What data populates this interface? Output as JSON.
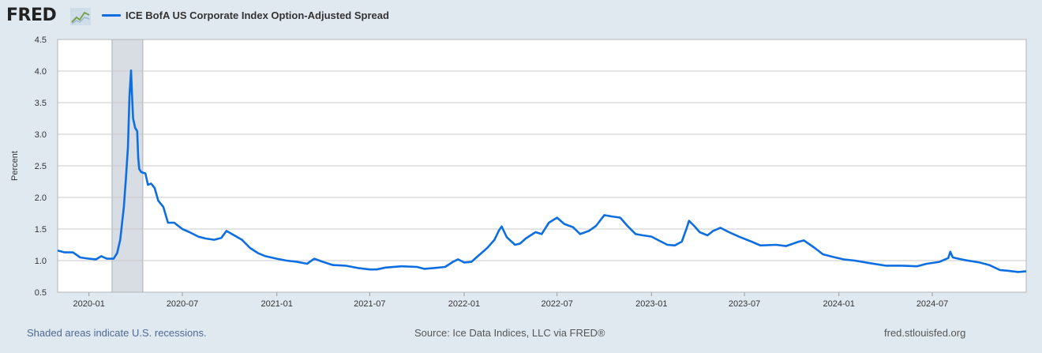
{
  "header": {
    "logo": "FRED",
    "series_label": "ICE BofA US Corporate Index Option-Adjusted Spread"
  },
  "footer": {
    "recession_note": "Shaded areas indicate U.S. recessions.",
    "source": "Source: Ice Data Indices, LLC via FRED®",
    "site": "fred.stlouisfed.org"
  },
  "colors": {
    "line": "#0c6ee0",
    "recession": "#d8dde3",
    "grid": "#c8c8c8"
  },
  "chart_data": {
    "type": "line",
    "ylabel": "Percent",
    "ylim": [
      0.5,
      4.5
    ],
    "yticks": [
      "0.5",
      "1.0",
      "1.5",
      "2.0",
      "2.5",
      "3.0",
      "3.5",
      "4.0",
      "4.5"
    ],
    "xlim": [
      "2019-11-01",
      "2024-12-31"
    ],
    "xticks": [
      "2020-01",
      "2020-07",
      "2021-01",
      "2021-07",
      "2022-01",
      "2022-07",
      "2023-01",
      "2023-07",
      "2024-01",
      "2024-07"
    ],
    "recessions": [
      [
        "2020-02-15",
        "2020-04-15"
      ]
    ],
    "series": [
      {
        "name": "ICE BofA US Corporate Index Option-Adjusted Spread",
        "points": [
          [
            "2019-11-01",
            1.16
          ],
          [
            "2019-11-15",
            1.13
          ],
          [
            "2019-12-01",
            1.13
          ],
          [
            "2019-12-15",
            1.05
          ],
          [
            "2020-01-01",
            1.03
          ],
          [
            "2020-01-15",
            1.02
          ],
          [
            "2020-01-25",
            1.07
          ],
          [
            "2020-02-05",
            1.03
          ],
          [
            "2020-02-18",
            1.03
          ],
          [
            "2020-02-25",
            1.12
          ],
          [
            "2020-03-02",
            1.33
          ],
          [
            "2020-03-09",
            1.85
          ],
          [
            "2020-03-13",
            2.3
          ],
          [
            "2020-03-17",
            2.8
          ],
          [
            "2020-03-20",
            3.6
          ],
          [
            "2020-03-23",
            4.01
          ],
          [
            "2020-03-25",
            3.6
          ],
          [
            "2020-03-27",
            3.25
          ],
          [
            "2020-03-31",
            3.1
          ],
          [
            "2020-04-04",
            3.05
          ],
          [
            "2020-04-06",
            2.62
          ],
          [
            "2020-04-08",
            2.45
          ],
          [
            "2020-04-12",
            2.4
          ],
          [
            "2020-04-20",
            2.38
          ],
          [
            "2020-04-25",
            2.2
          ],
          [
            "2020-05-01",
            2.22
          ],
          [
            "2020-05-08",
            2.15
          ],
          [
            "2020-05-15",
            1.95
          ],
          [
            "2020-05-25",
            1.85
          ],
          [
            "2020-06-03",
            1.6
          ],
          [
            "2020-06-15",
            1.6
          ],
          [
            "2020-07-01",
            1.5
          ],
          [
            "2020-07-15",
            1.45
          ],
          [
            "2020-08-01",
            1.38
          ],
          [
            "2020-08-15",
            1.35
          ],
          [
            "2020-09-01",
            1.33
          ],
          [
            "2020-09-15",
            1.36
          ],
          [
            "2020-09-25",
            1.47
          ],
          [
            "2020-10-10",
            1.4
          ],
          [
            "2020-10-25",
            1.33
          ],
          [
            "2020-11-10",
            1.2
          ],
          [
            "2020-11-25",
            1.12
          ],
          [
            "2020-12-10",
            1.07
          ],
          [
            "2021-01-01",
            1.03
          ],
          [
            "2021-01-20",
            1.0
          ],
          [
            "2021-02-10",
            0.98
          ],
          [
            "2021-03-01",
            0.95
          ],
          [
            "2021-03-15",
            1.03
          ],
          [
            "2021-04-01",
            0.98
          ],
          [
            "2021-04-20",
            0.93
          ],
          [
            "2021-05-15",
            0.92
          ],
          [
            "2021-06-10",
            0.88
          ],
          [
            "2021-07-01",
            0.86
          ],
          [
            "2021-07-15",
            0.86
          ],
          [
            "2021-08-01",
            0.89
          ],
          [
            "2021-09-01",
            0.91
          ],
          [
            "2021-10-01",
            0.9
          ],
          [
            "2021-10-15",
            0.87
          ],
          [
            "2021-11-01",
            0.88
          ],
          [
            "2021-11-25",
            0.9
          ],
          [
            "2021-12-10",
            0.98
          ],
          [
            "2021-12-20",
            1.02
          ],
          [
            "2022-01-01",
            0.97
          ],
          [
            "2022-01-15",
            0.98
          ],
          [
            "2022-02-01",
            1.1
          ],
          [
            "2022-02-15",
            1.2
          ],
          [
            "2022-03-01",
            1.33
          ],
          [
            "2022-03-10",
            1.48
          ],
          [
            "2022-03-15",
            1.54
          ],
          [
            "2022-03-25",
            1.37
          ],
          [
            "2022-04-10",
            1.25
          ],
          [
            "2022-04-20",
            1.27
          ],
          [
            "2022-05-01",
            1.35
          ],
          [
            "2022-05-20",
            1.45
          ],
          [
            "2022-06-01",
            1.42
          ],
          [
            "2022-06-15",
            1.6
          ],
          [
            "2022-07-01",
            1.68
          ],
          [
            "2022-07-15",
            1.58
          ],
          [
            "2022-08-01",
            1.53
          ],
          [
            "2022-08-15",
            1.42
          ],
          [
            "2022-09-01",
            1.47
          ],
          [
            "2022-09-15",
            1.55
          ],
          [
            "2022-10-01",
            1.72
          ],
          [
            "2022-10-15",
            1.7
          ],
          [
            "2022-11-01",
            1.68
          ],
          [
            "2022-11-15",
            1.55
          ],
          [
            "2022-12-01",
            1.42
          ],
          [
            "2022-12-15",
            1.4
          ],
          [
            "2023-01-01",
            1.38
          ],
          [
            "2023-01-15",
            1.32
          ],
          [
            "2023-02-01",
            1.25
          ],
          [
            "2023-02-15",
            1.24
          ],
          [
            "2023-03-01",
            1.3
          ],
          [
            "2023-03-10",
            1.5
          ],
          [
            "2023-03-15",
            1.63
          ],
          [
            "2023-03-25",
            1.55
          ],
          [
            "2023-04-05",
            1.45
          ],
          [
            "2023-04-20",
            1.4
          ],
          [
            "2023-05-01",
            1.47
          ],
          [
            "2023-05-15",
            1.52
          ],
          [
            "2023-06-01",
            1.45
          ],
          [
            "2023-06-20",
            1.38
          ],
          [
            "2023-07-15",
            1.3
          ],
          [
            "2023-08-01",
            1.24
          ],
          [
            "2023-09-01",
            1.25
          ],
          [
            "2023-09-20",
            1.23
          ],
          [
            "2023-10-15",
            1.3
          ],
          [
            "2023-10-25",
            1.32
          ],
          [
            "2023-11-15",
            1.2
          ],
          [
            "2023-12-01",
            1.1
          ],
          [
            "2023-12-20",
            1.06
          ],
          [
            "2024-01-10",
            1.02
          ],
          [
            "2024-02-01",
            1.0
          ],
          [
            "2024-03-01",
            0.96
          ],
          [
            "2024-04-01",
            0.92
          ],
          [
            "2024-05-01",
            0.92
          ],
          [
            "2024-06-01",
            0.91
          ],
          [
            "2024-06-20",
            0.95
          ],
          [
            "2024-07-15",
            0.98
          ],
          [
            "2024-08-01",
            1.04
          ],
          [
            "2024-08-05",
            1.14
          ],
          [
            "2024-08-10",
            1.05
          ],
          [
            "2024-09-01",
            1.01
          ],
          [
            "2024-10-01",
            0.97
          ],
          [
            "2024-10-20",
            0.93
          ],
          [
            "2024-11-10",
            0.85
          ],
          [
            "2024-11-25",
            0.84
          ],
          [
            "2024-12-15",
            0.82
          ],
          [
            "2024-12-31",
            0.83
          ]
        ]
      }
    ]
  }
}
